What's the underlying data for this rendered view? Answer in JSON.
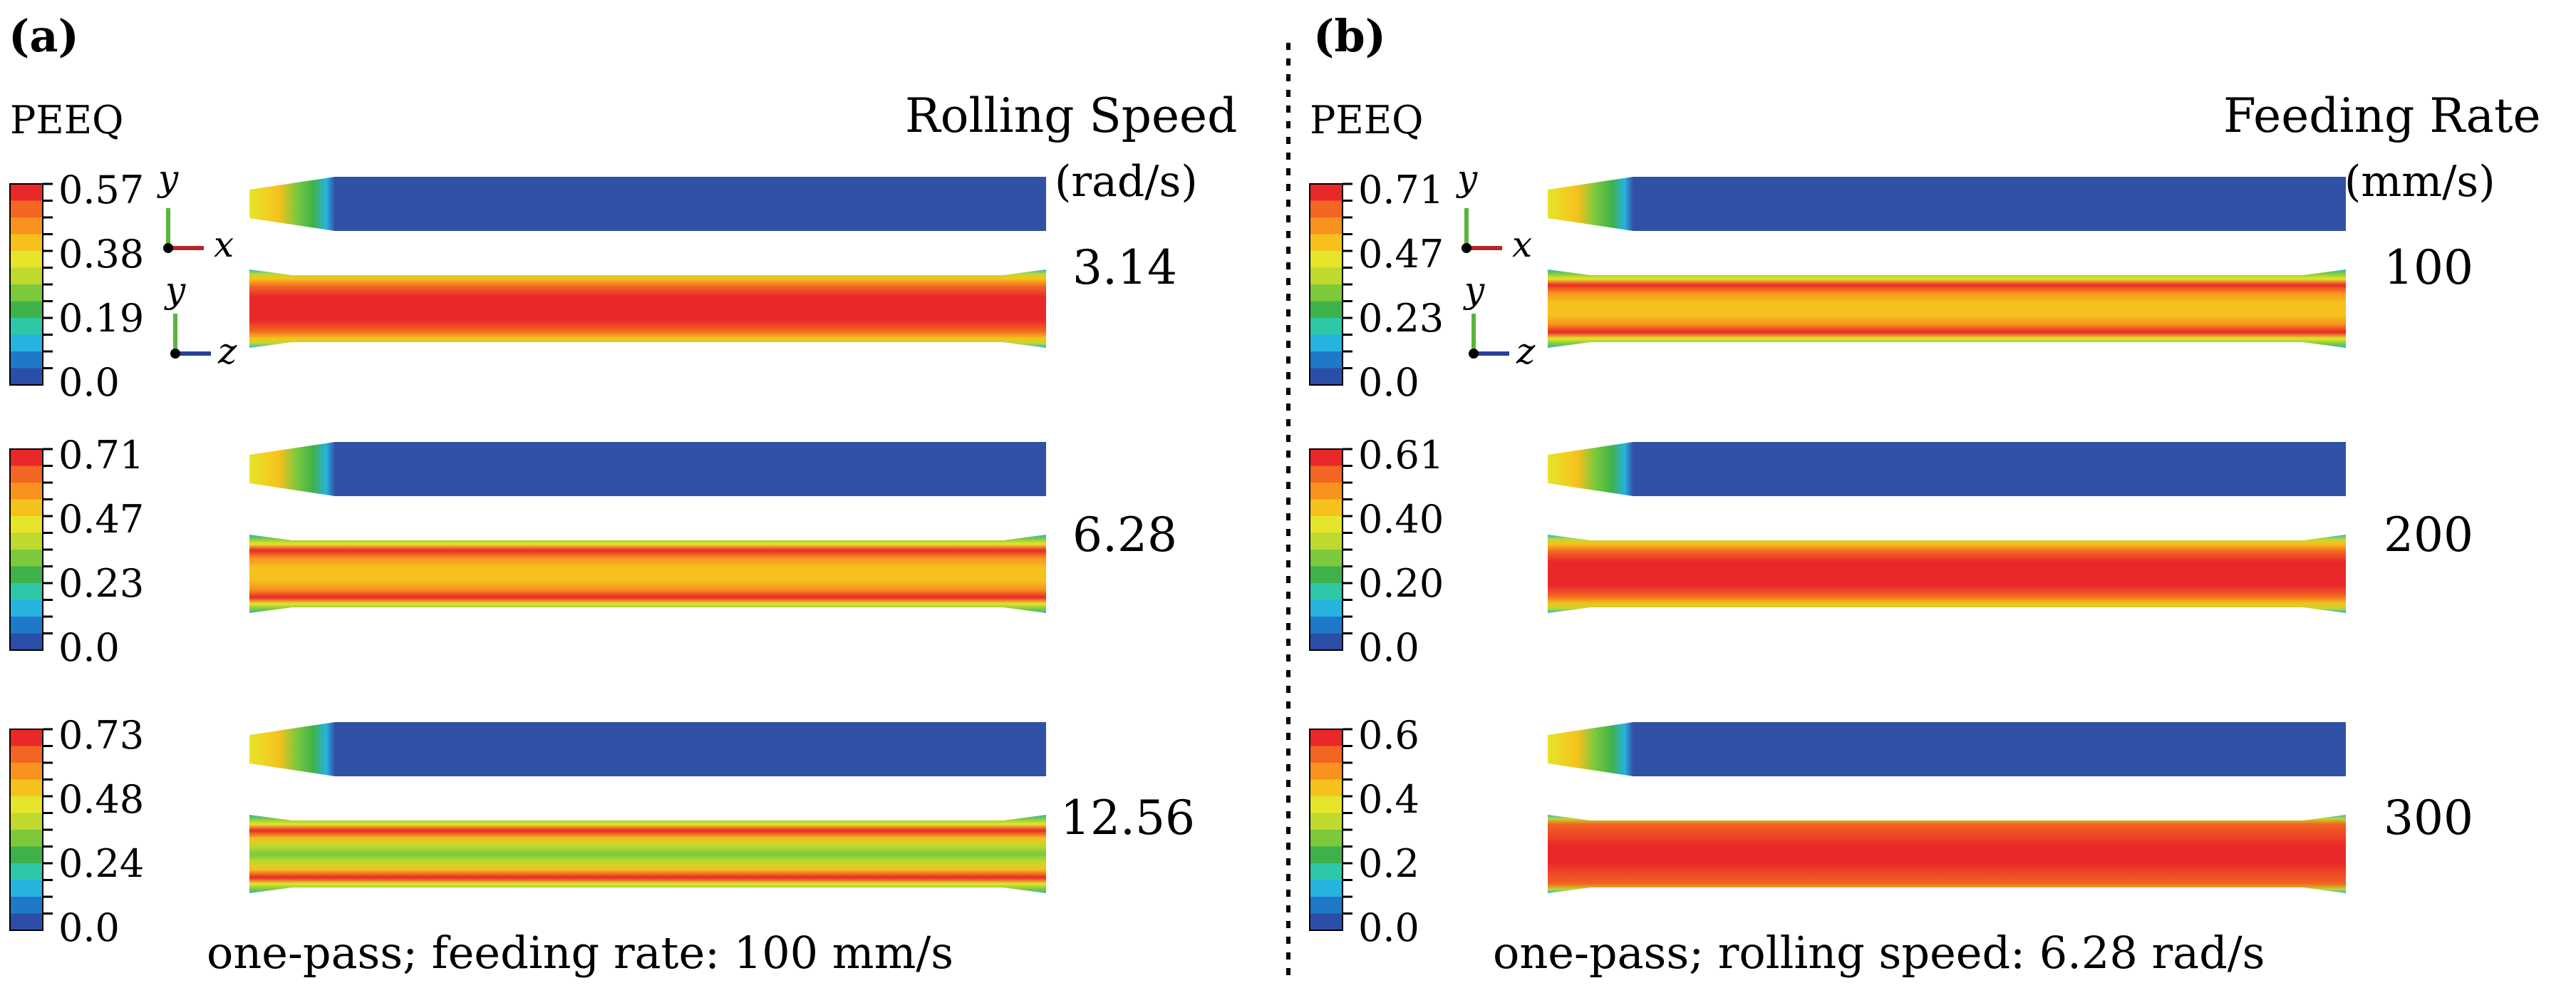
{
  "colors": {
    "scale": [
      "#2b4ea8",
      "#1e79c9",
      "#27b3e0",
      "#2ec7a8",
      "#3fb14a",
      "#7cc93c",
      "#bfd92e",
      "#e6e52a",
      "#f6c11d",
      "#f7931e",
      "#f26522",
      "#e9282a"
    ],
    "bar_blue": "#3151a6",
    "divider": "#000000"
  },
  "panels": [
    {
      "label": "(a)",
      "peeq_label": "PEEQ",
      "param_title": "Rolling Speed",
      "param_unit": "(rad/s)",
      "caption": "one-pass; feeding rate: 100 mm/s",
      "rows": [
        {
          "value": "3.14",
          "ticks": [
            "0.57",
            "0.38",
            "0.19",
            "0.0"
          ],
          "core": "mix-red",
          "axes": true
        },
        {
          "value": "6.28",
          "ticks": [
            "0.71",
            "0.47",
            "0.23",
            "0.0"
          ],
          "core": "mix-orange",
          "axes": false
        },
        {
          "value": "12.56",
          "ticks": [
            "0.73",
            "0.48",
            "0.24",
            "0.0"
          ],
          "core": "mix-green",
          "axes": false
        }
      ]
    },
    {
      "label": "(b)",
      "peeq_label": "PEEQ",
      "param_title": "Feeding Rate",
      "param_unit": "(mm/s)",
      "caption": "one-pass; rolling speed: 6.28 rad/s",
      "rows": [
        {
          "value": "100",
          "ticks": [
            "0.71",
            "0.47",
            "0.23",
            "0.0"
          ],
          "core": "mix-orange",
          "axes": true
        },
        {
          "value": "200",
          "ticks": [
            "0.61",
            "0.40",
            "0.20",
            "0.0"
          ],
          "core": "mix-red",
          "axes": false
        },
        {
          "value": "300",
          "ticks": [
            "0.6",
            "0.4",
            "0.2",
            "0.0"
          ],
          "core": "mix-deep",
          "axes": false
        }
      ]
    }
  ],
  "axes_labels": {
    "y": "y",
    "x": "x",
    "z": "z"
  }
}
